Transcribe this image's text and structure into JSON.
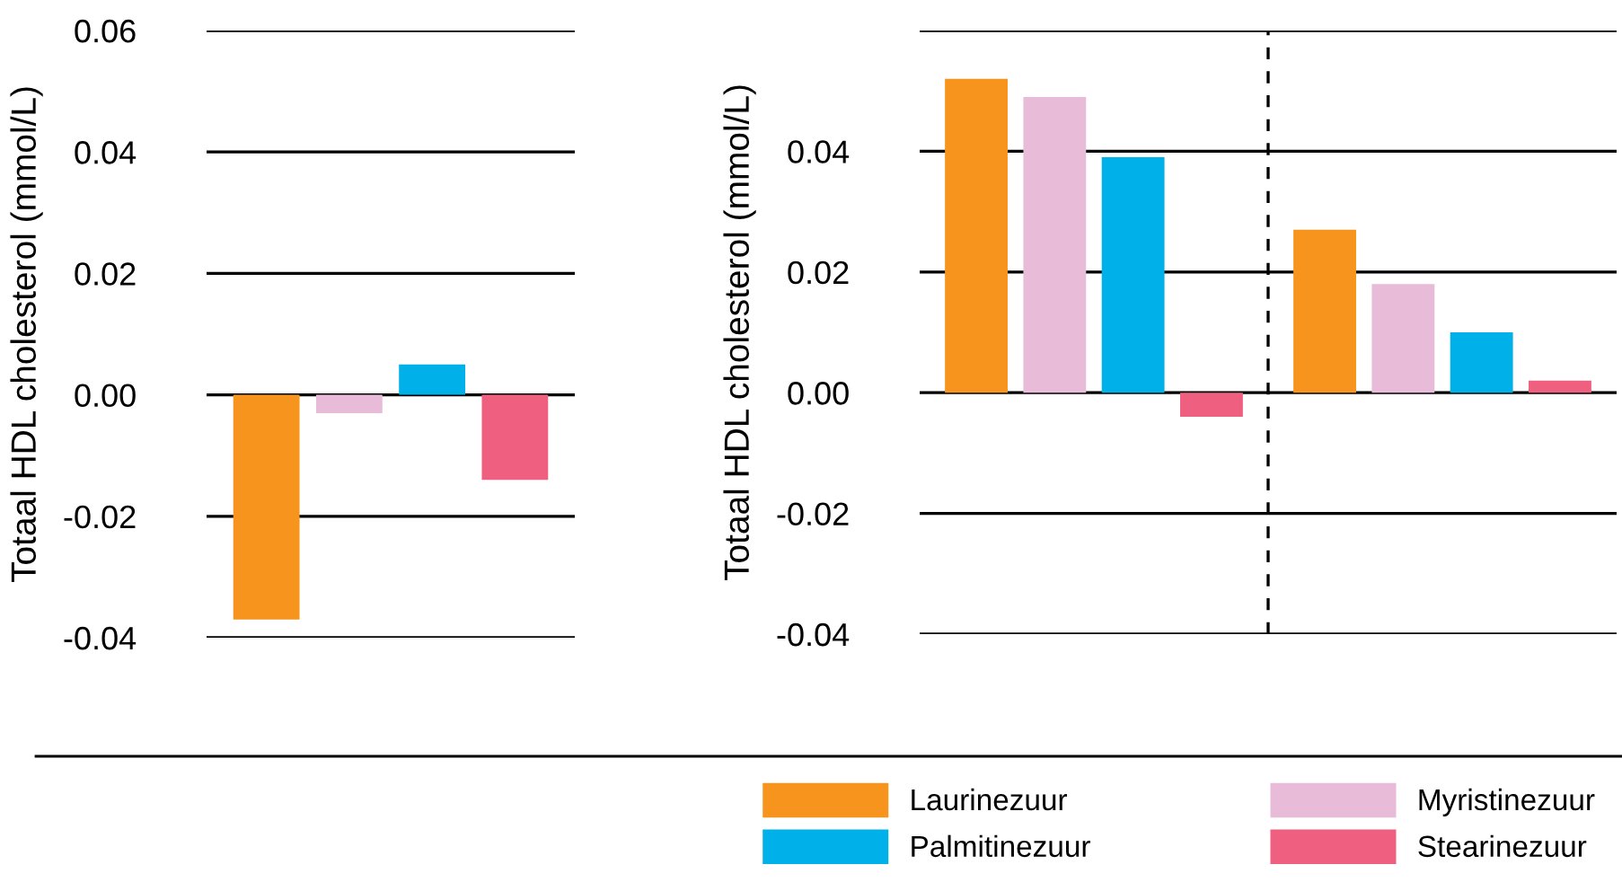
{
  "chart_data": [
    {
      "type": "bar",
      "ylabel": "Totaal HDL cholesterol (mmol/L)",
      "categories": [
        null
      ],
      "ylim": [
        -0.04,
        0.06
      ],
      "yticks": [
        {
          "value": -0.04,
          "label": "-0.04"
        },
        {
          "value": -0.02,
          "label": "-0.02"
        },
        {
          "value": 0.0,
          "label": "0.00"
        },
        {
          "value": 0.02,
          "label": "0.02"
        },
        {
          "value": 0.04,
          "label": "0.04"
        },
        {
          "value": 0.06,
          "label": "0.06"
        }
      ],
      "grid": "y",
      "legend": false,
      "series": [
        {
          "color": "#f7941d",
          "values": [
            -0.037
          ]
        },
        {
          "color": "#e8bcd8",
          "values": [
            -0.003
          ]
        },
        {
          "color": "#00b0e8",
          "values": [
            0.005
          ]
        },
        {
          "color": "#ef6080",
          "values": [
            -0.014
          ]
        }
      ]
    },
    {
      "type": "bar",
      "ylabel": "Totaal HDL cholesterol (mmol/L)",
      "categories": [
        null,
        null
      ],
      "ylim": [
        -0.04,
        0.06
      ],
      "yticks": [
        {
          "value": -0.04,
          "label": "-0.04"
        },
        {
          "value": -0.02,
          "label": "-0.02"
        },
        {
          "value": 0.0,
          "label": "0.00"
        },
        {
          "value": 0.02,
          "label": "0.02"
        },
        {
          "value": 0.04,
          "label": "0.04"
        },
        {
          "value": 0.06,
          "label": null
        }
      ],
      "grid": "y",
      "legend": "bottom",
      "series": [
        {
          "name": "Laurinezuur",
          "color": "#f7941d",
          "values": [
            0.052,
            0.027
          ]
        },
        {
          "name": "Myristinezuur",
          "color": "#e8bcd8",
          "values": [
            0.049,
            0.018
          ]
        },
        {
          "name": "Palmitinezuur",
          "color": "#00b0e8",
          "values": [
            0.039,
            0.01
          ]
        },
        {
          "name": "Stearinezuur",
          "color": "#ef6080",
          "values": [
            -0.004,
            0.002
          ]
        }
      ]
    }
  ]
}
